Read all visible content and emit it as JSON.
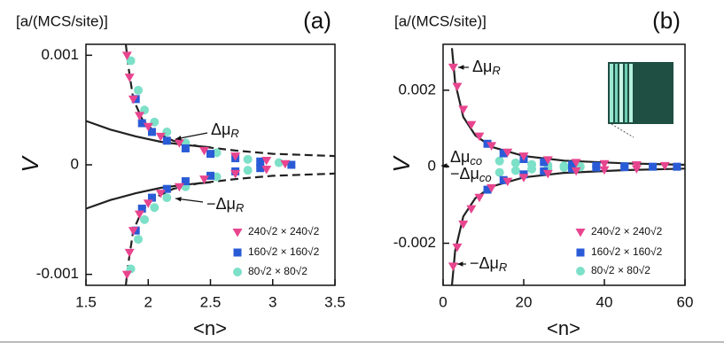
{
  "chart_data": [
    {
      "type": "scatter",
      "panel_label": "(a)",
      "y_label": "[a/(MCS/site)]",
      "y_axis_title": "V",
      "x_label": "<n>",
      "xlim": [
        1.5,
        3.5
      ],
      "xticks": [
        1.5,
        2,
        2.5,
        3,
        3.5
      ],
      "ylim": [
        -0.0011,
        0.0011
      ],
      "yticks": [
        -0.001,
        0,
        0.001
      ],
      "series": [
        {
          "name": "240√2 × 240√2",
          "color": "#e8458f",
          "marker": "triangle-down",
          "x": [
            1.83,
            1.85,
            1.88,
            1.93,
            2.0,
            2.1,
            2.25,
            2.45,
            2.7,
            2.95,
            3.1,
            1.83,
            1.85,
            1.88,
            1.93,
            2.0,
            2.1,
            2.25,
            2.45,
            2.7,
            2.95
          ],
          "y": [
            0.001,
            0.0008,
            0.0006,
            0.00045,
            0.00035,
            0.00026,
            0.0002,
            0.00013,
            8e-05,
            4e-05,
            1e-05,
            -0.001,
            -0.0008,
            -0.0006,
            -0.00045,
            -0.00035,
            -0.00026,
            -0.0002,
            -0.00013,
            -8e-05,
            -4e-05
          ]
        },
        {
          "name": "160√2 × 160√2",
          "color": "#2a5bd7",
          "marker": "square",
          "x": [
            1.9,
            1.95,
            2.03,
            2.15,
            2.3,
            2.5,
            2.7,
            2.9,
            3.15,
            1.9,
            1.95,
            2.03,
            2.15,
            2.3,
            2.5,
            2.7,
            2.9
          ],
          "y": [
            0.0006,
            0.00038,
            0.0003,
            0.00022,
            0.00015,
            0.0001,
            6e-05,
            3e-05,
            0.0,
            -0.0006,
            -0.0004,
            -0.0003,
            -0.00022,
            -0.00015,
            -0.0001,
            -6e-05,
            -3e-05
          ]
        },
        {
          "name": "80√2 × 80√2",
          "color": "#7de0c8",
          "marker": "circle",
          "x": [
            1.86,
            1.92,
            1.97,
            2.05,
            2.15,
            2.3,
            2.55,
            2.8,
            3.05,
            1.86,
            1.92,
            1.97,
            2.05,
            2.15,
            2.3,
            2.55,
            2.8
          ],
          "y": [
            0.00095,
            0.00068,
            0.0005,
            0.00039,
            0.0003,
            0.0002,
            0.00011,
            5e-05,
            2e-05,
            -0.00095,
            -0.00068,
            -0.0005,
            -0.00039,
            -0.0003,
            -0.0002,
            -0.00011,
            -5e-05
          ]
        }
      ],
      "lines": [
        {
          "style": "dashed",
          "color": "#222222",
          "x": [
            1.82,
            1.84,
            1.88,
            1.95,
            2.05,
            2.2,
            2.4,
            2.7,
            3.0,
            3.5
          ],
          "y": [
            0.0011,
            0.0009,
            0.0006,
            0.00042,
            0.0003,
            0.00022,
            0.00017,
            0.00013,
            0.0001,
            8e-05
          ]
        },
        {
          "style": "dashed",
          "color": "#222222",
          "x": [
            1.82,
            1.84,
            1.88,
            1.95,
            2.05,
            2.2,
            2.4,
            2.7,
            3.0,
            3.5
          ],
          "y": [
            -0.0011,
            -0.0009,
            -0.0006,
            -0.00042,
            -0.0003,
            -0.00022,
            -0.00017,
            -0.00013,
            -0.0001,
            -8e-05
          ]
        },
        {
          "style": "solid",
          "color": "#222222",
          "x": [
            1.5,
            1.7,
            1.9,
            2.1,
            2.3,
            2.5
          ],
          "y": [
            0.0004,
            0.00032,
            0.00026,
            0.00021,
            0.00018,
            0.00016
          ]
        },
        {
          "style": "solid",
          "color": "#222222",
          "x": [
            1.5,
            1.7,
            1.9,
            2.1,
            2.3,
            2.5
          ],
          "y": [
            -0.0004,
            -0.00032,
            -0.00026,
            -0.00021,
            -0.00018,
            -0.00016
          ]
        }
      ],
      "annotations": [
        {
          "text": "Δμ",
          "sub": "R"
        },
        {
          "text": "−Δμ",
          "sub": "R"
        }
      ]
    },
    {
      "type": "scatter",
      "panel_label": "(b)",
      "y_label": "[a/(MCS/site)]",
      "y_axis_title": "V",
      "x_label": "<n>",
      "xlim": [
        0,
        60
      ],
      "xticks": [
        0,
        20,
        40,
        60
      ],
      "ylim": [
        -0.0031,
        0.0032
      ],
      "yticks": [
        -0.002,
        0,
        0.002
      ],
      "series": [
        {
          "name": "240√2 × 240√2",
          "color": "#e8458f",
          "marker": "triangle-down",
          "x": [
            2.5,
            3.5,
            5,
            7,
            9,
            12,
            16,
            20,
            26,
            33,
            40,
            48,
            55,
            2.5,
            3.5,
            5,
            7,
            9,
            12,
            16,
            20,
            26,
            33,
            40,
            48
          ],
          "y": [
            0.0026,
            0.0021,
            0.0015,
            0.0011,
            0.0008,
            0.00055,
            0.00038,
            0.00028,
            0.00018,
            0.00011,
            8e-05,
            5e-05,
            3e-05,
            -0.0026,
            -0.0021,
            -0.0015,
            -0.0011,
            -0.0008,
            -0.00055,
            -0.00038,
            -0.00028,
            -0.00018,
            -0.00011,
            -8e-05,
            -5e-05
          ]
        },
        {
          "name": "160√2 × 160√2",
          "color": "#2a5bd7",
          "marker": "square",
          "x": [
            11,
            15,
            20,
            25,
            32,
            38,
            45,
            52,
            58,
            11,
            15,
            20,
            25,
            32,
            38,
            45
          ],
          "y": [
            0.0006,
            0.00035,
            0.0002,
            0.00012,
            5e-05,
            2e-05,
            1e-05,
            0.0,
            0.0,
            -0.0006,
            -0.00035,
            -0.0002,
            -0.00012,
            -5e-05,
            -2e-05,
            -1e-05
          ]
        },
        {
          "name": "80√2 × 80√2",
          "color": "#7de0c8",
          "marker": "circle",
          "x": [
            14,
            18,
            22,
            26,
            30,
            34,
            38,
            14,
            18,
            22,
            26,
            30,
            34
          ],
          "y": [
            0.00015,
            0.0001,
            6e-05,
            4e-05,
            2e-05,
            1e-05,
            0.0,
            -0.00015,
            -0.0001,
            -6e-05,
            -4e-05,
            -2e-05,
            -1e-05
          ]
        }
      ],
      "lines": [
        {
          "style": "solid",
          "color": "#222222",
          "x": [
            2.2,
            3,
            5,
            8,
            12,
            20,
            30,
            45,
            60
          ],
          "y": [
            0.0031,
            0.0022,
            0.0013,
            0.00082,
            0.00052,
            0.00028,
            0.00016,
            9e-05,
            5e-05
          ]
        },
        {
          "style": "solid",
          "color": "#222222",
          "x": [
            2.2,
            3,
            5,
            8,
            12,
            20,
            30,
            45,
            60
          ],
          "y": [
            -0.0031,
            -0.0022,
            -0.0013,
            -0.00082,
            -0.00052,
            -0.00028,
            -0.00016,
            -9e-05,
            -5e-05
          ]
        }
      ],
      "annotations": [
        {
          "text": "Δμ",
          "sub": "R"
        },
        {
          "text": "Δμ",
          "sub": "co"
        },
        {
          "text": "−Δμ",
          "sub": "co"
        },
        {
          "text": "−Δμ",
          "sub": "R"
        }
      ]
    }
  ]
}
